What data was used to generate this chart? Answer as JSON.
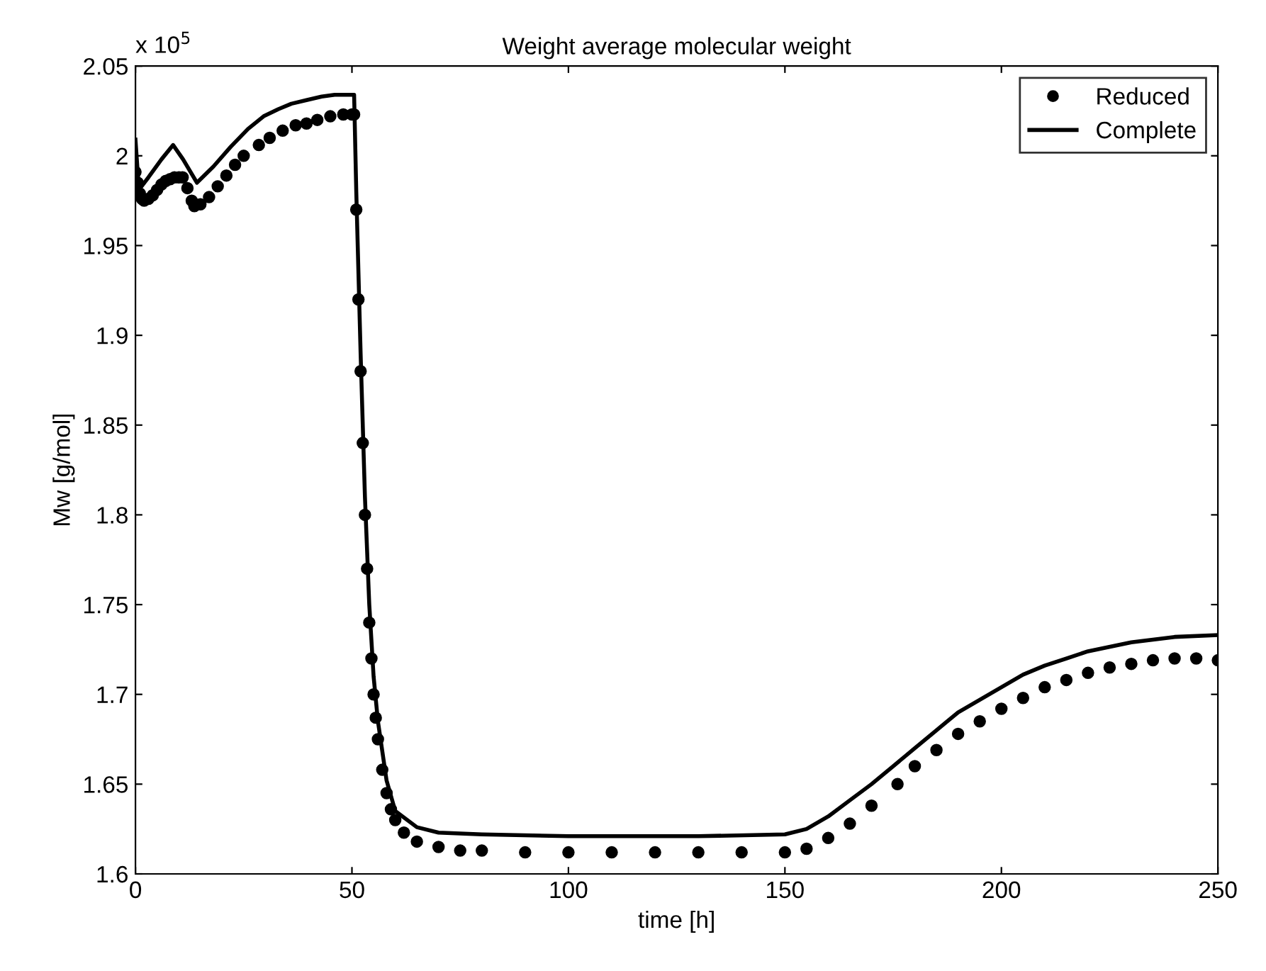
{
  "chart_data": {
    "type": "line",
    "title": "Weight average molecular weight",
    "xlabel": "time [h]",
    "ylabel": "Mw [g/mol]",
    "annotations": [
      "x 10$^{5}$"
    ],
    "xlim": [
      0,
      250
    ],
    "xticks": [
      0,
      50,
      100,
      150,
      200,
      250
    ],
    "ylim": [
      1.6,
      2.05
    ],
    "yticks": [
      1.6,
      1.65,
      1.7,
      1.75,
      1.8,
      1.85,
      1.9,
      1.95,
      2,
      2.05
    ],
    "grid": false,
    "legend": "top right",
    "series": [
      {
        "name": "Reduced",
        "type": "scatter",
        "marker": "circle",
        "color": "#000000",
        "x": [
          0,
          0.5,
          1,
          1.5,
          2,
          3,
          4,
          5,
          6,
          7,
          8,
          9,
          10,
          10.9,
          12,
          13,
          13.6,
          15,
          17,
          19,
          21,
          23,
          25,
          28.5,
          31,
          34,
          37,
          39.5,
          42,
          45,
          48,
          50,
          50.5,
          51,
          51.5,
          52,
          52.5,
          53,
          53.5,
          54,
          54.5,
          55,
          55.5,
          56,
          57,
          58,
          59,
          60,
          62,
          65,
          70,
          75,
          80,
          90,
          100,
          110,
          120,
          130,
          140,
          150,
          155,
          160,
          165,
          170,
          176,
          180,
          185,
          190,
          195,
          200,
          205,
          210,
          215,
          220,
          225,
          230,
          235,
          240,
          245,
          250
        ],
        "values": [
          1.991,
          1.985,
          1.979,
          1.976,
          1.975,
          1.976,
          1.978,
          1.981,
          1.984,
          1.986,
          1.987,
          1.988,
          1.988,
          1.988,
          1.982,
          1.975,
          1.972,
          1.973,
          1.977,
          1.983,
          1.989,
          1.995,
          2.0,
          2.006,
          2.01,
          2.014,
          2.017,
          2.018,
          2.02,
          2.022,
          2.023,
          2.023,
          2.023,
          1.97,
          1.92,
          1.88,
          1.84,
          1.8,
          1.77,
          1.74,
          1.72,
          1.7,
          1.687,
          1.675,
          1.658,
          1.645,
          1.636,
          1.63,
          1.623,
          1.618,
          1.615,
          1.613,
          1.613,
          1.612,
          1.612,
          1.612,
          1.612,
          1.612,
          1.612,
          1.612,
          1.614,
          1.62,
          1.628,
          1.638,
          1.65,
          1.66,
          1.669,
          1.678,
          1.685,
          1.692,
          1.698,
          1.704,
          1.708,
          1.712,
          1.715,
          1.717,
          1.719,
          1.72,
          1.72,
          1.719
        ]
      },
      {
        "name": "Complete",
        "marker": "none",
        "line_style": "solid",
        "color": "#000000",
        "x": [
          0,
          0.8,
          3,
          6,
          8.7,
          11,
          14.2,
          18,
          22,
          26,
          29.6,
          33,
          36,
          39.5,
          43,
          46,
          50.5,
          51,
          52,
          53,
          54,
          55,
          56,
          58,
          60,
          65,
          70,
          80,
          100,
          130,
          150,
          155,
          160,
          165,
          170,
          175,
          180,
          185,
          190,
          195,
          200,
          205,
          210,
          215,
          220,
          230,
          240,
          250
        ],
        "values": [
          2.009,
          1.981,
          1.988,
          1.998,
          2.006,
          1.998,
          1.985,
          1.994,
          2.005,
          2.015,
          2.022,
          2.026,
          2.029,
          2.031,
          2.033,
          2.034,
          2.034,
          1.98,
          1.89,
          1.81,
          1.75,
          1.71,
          1.685,
          1.652,
          1.635,
          1.626,
          1.623,
          1.622,
          1.621,
          1.621,
          1.622,
          1.625,
          1.632,
          1.641,
          1.65,
          1.66,
          1.67,
          1.68,
          1.69,
          1.697,
          1.704,
          1.711,
          1.716,
          1.72,
          1.724,
          1.729,
          1.732,
          1.733
        ]
      }
    ]
  }
}
